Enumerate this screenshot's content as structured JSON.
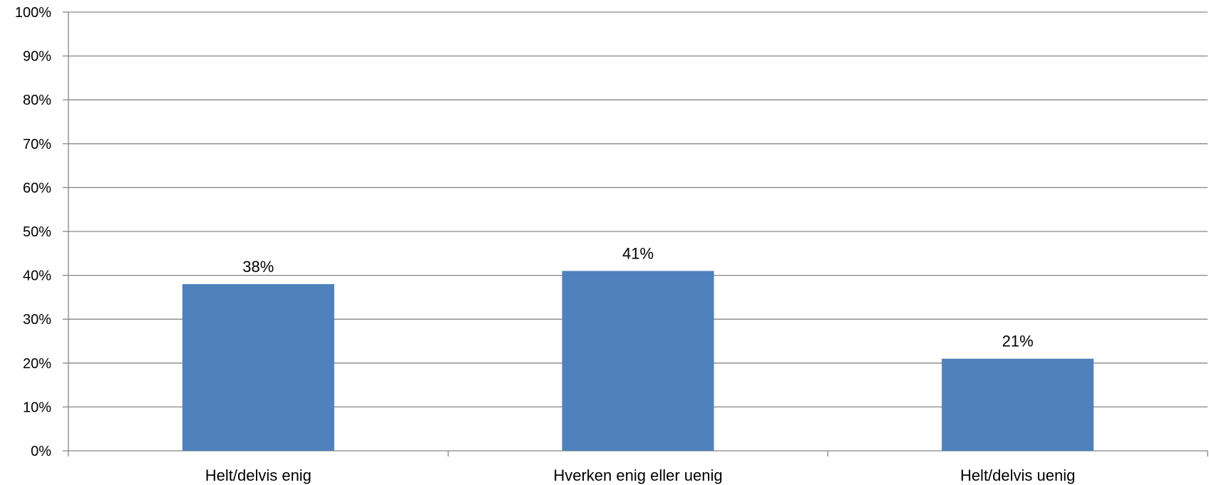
{
  "chart_data": {
    "type": "bar",
    "categories": [
      "Helt/delvis enig",
      "Hverken enig eller uenig",
      "Helt/delvis uenig"
    ],
    "values": [
      38,
      41,
      21
    ],
    "data_labels": [
      "38%",
      "41%",
      "21%"
    ],
    "ylim": [
      0,
      100
    ],
    "yticks": [
      0,
      10,
      20,
      30,
      40,
      50,
      60,
      70,
      80,
      90,
      100
    ],
    "ytick_labels": [
      "0%",
      "10%",
      "20%",
      "30%",
      "40%",
      "50%",
      "60%",
      "70%",
      "80%",
      "90%",
      "100%"
    ],
    "grid": true,
    "legend": "none",
    "bar_color": "#4F81BD",
    "grid_color": "#868686"
  }
}
